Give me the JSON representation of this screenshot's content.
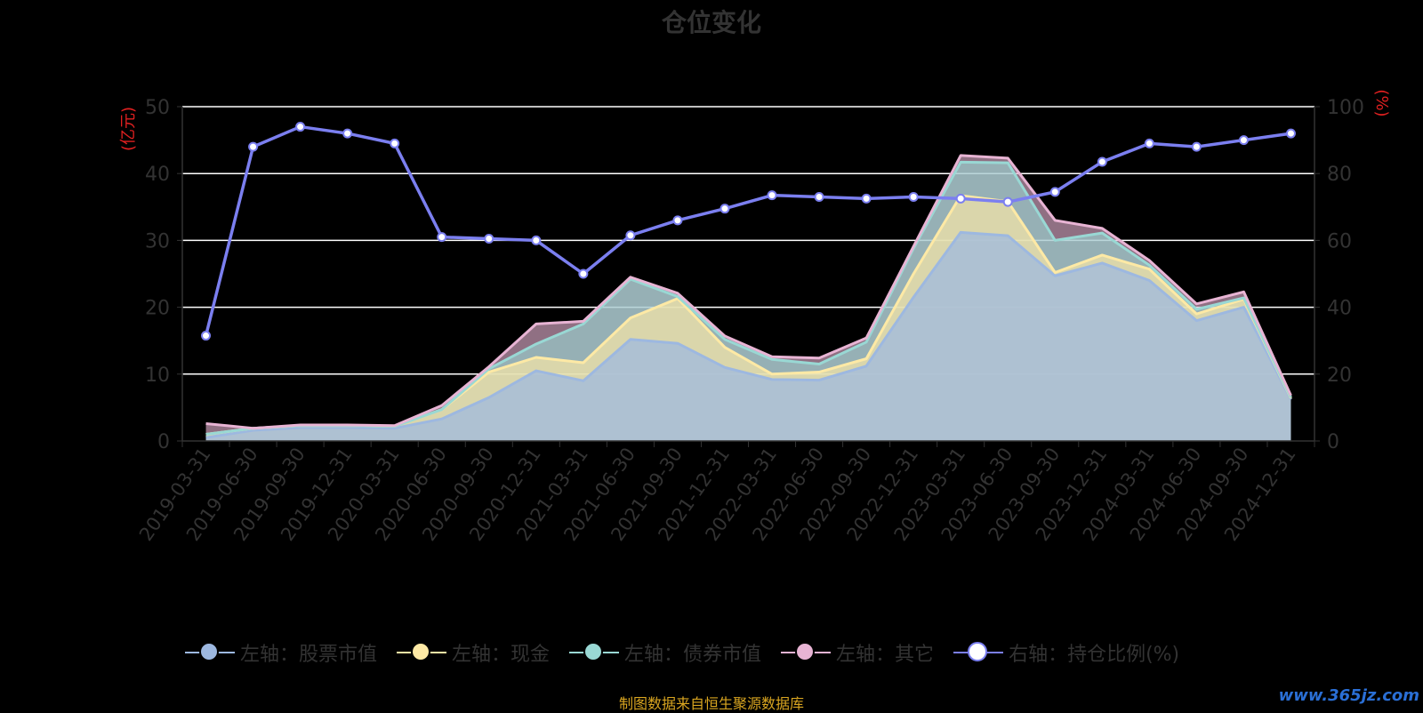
{
  "title": "仓位变化",
  "source_note": "制图数据来自恒生聚源数据库",
  "watermark": "www.365jz.com",
  "legend": [
    {
      "label": "左轴：股票市值",
      "color": "#9db8e0"
    },
    {
      "label": "左轴：现金",
      "color": "#fde9a5"
    },
    {
      "label": "左轴：债券市值",
      "color": "#99d8d4"
    },
    {
      "label": "左轴：其它",
      "color": "#e8b4d4"
    },
    {
      "label": "右轴：持仓比例(%)",
      "color": "#7b7ff0"
    }
  ],
  "chart_data": {
    "type": "area",
    "title": "仓位变化",
    "categories": [
      "2019-03-31",
      "2019-06-30",
      "2019-09-30",
      "2019-12-31",
      "2020-03-31",
      "2020-06-30",
      "2020-09-30",
      "2020-12-31",
      "2021-03-31",
      "2021-06-30",
      "2021-09-30",
      "2021-12-31",
      "2022-03-31",
      "2022-06-30",
      "2022-09-30",
      "2022-12-31",
      "2023-03-31",
      "2023-06-30",
      "2023-09-30",
      "2023-12-31",
      "2024-03-31",
      "2024-06-30",
      "2024-09-30",
      "2024-12-31"
    ],
    "left_axis": {
      "unit_label": "(亿元)",
      "ylim": [
        0,
        50
      ],
      "ticks": [
        0,
        10,
        20,
        30,
        40,
        50
      ]
    },
    "right_axis": {
      "unit_label": "(%)",
      "ylim": [
        0,
        100
      ],
      "ticks": [
        0,
        20,
        40,
        60,
        80,
        100
      ]
    },
    "stacked": true,
    "series": [
      {
        "name": "左轴：股票市值",
        "axis": "left",
        "color": "#9db8e0",
        "values": [
          0.5,
          1.6,
          2.0,
          2.0,
          1.9,
          3.3,
          6.5,
          10.5,
          9.0,
          15.2,
          14.6,
          11.0,
          9.2,
          9.1,
          11.2,
          21.5,
          31.2,
          30.7,
          24.7,
          26.6,
          24.0,
          18.0,
          20.0,
          6.2
        ]
      },
      {
        "name": "左轴：现金",
        "axis": "left",
        "color": "#fde9a5",
        "values": [
          0.5,
          0.3,
          0.3,
          0.3,
          0.3,
          1.4,
          3.8,
          2.0,
          2.7,
          3.2,
          6.7,
          3.0,
          0.8,
          1.2,
          1.1,
          3.5,
          5.5,
          5.1,
          0.5,
          1.2,
          1.7,
          1.0,
          1.2,
          0.2
        ]
      },
      {
        "name": "左轴：债券市值",
        "axis": "left",
        "color": "#99d8d4",
        "values": [
          0.0,
          0.0,
          0.0,
          0.0,
          0.0,
          0.0,
          0.5,
          2.0,
          5.8,
          5.8,
          0.3,
          1.2,
          2.2,
          1.2,
          2.5,
          3.8,
          5.0,
          5.8,
          4.8,
          3.3,
          0.6,
          0.7,
          0.2,
          0.1
        ]
      },
      {
        "name": "左轴：其它",
        "axis": "left",
        "color": "#e8b4d4",
        "values": [
          1.6,
          0.0,
          0.1,
          0.1,
          0.1,
          0.6,
          0.3,
          3.0,
          0.4,
          0.3,
          0.5,
          0.5,
          0.4,
          0.9,
          0.6,
          0.3,
          1.0,
          0.7,
          3.0,
          0.7,
          0.7,
          0.8,
          0.9,
          0.3
        ]
      },
      {
        "name": "右轴：持仓比例(%)",
        "axis": "right",
        "type": "line",
        "color": "#7b7ff0",
        "values": [
          31.5,
          88.0,
          94.0,
          92.0,
          89.0,
          61.0,
          60.5,
          60.0,
          50.0,
          61.5,
          66.0,
          69.5,
          73.5,
          73.0,
          72.5,
          73.0,
          72.5,
          71.5,
          74.5,
          83.5,
          89.0,
          88.0,
          90.0,
          92.0
        ]
      }
    ]
  }
}
